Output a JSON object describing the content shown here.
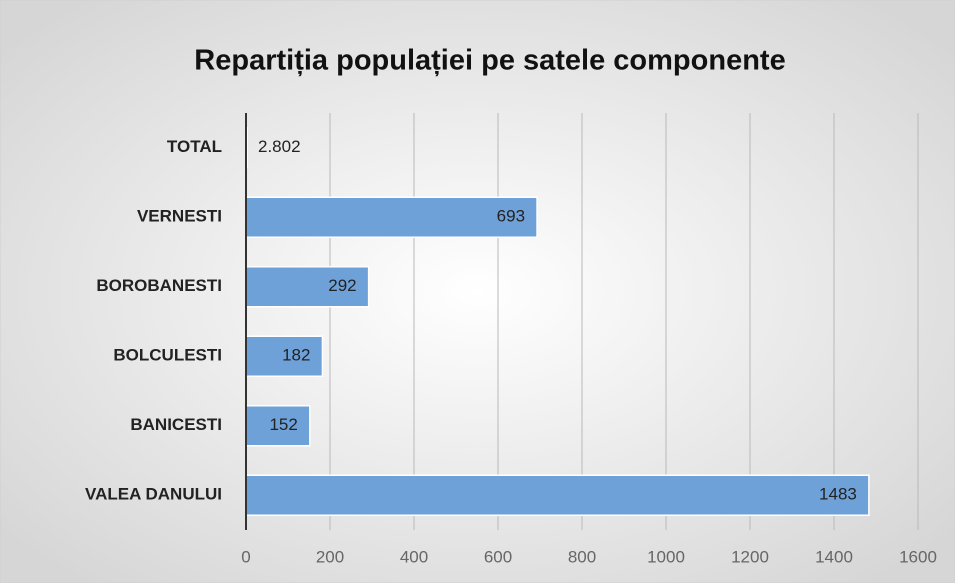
{
  "chart_data": {
    "type": "hbar",
    "title": "Repartiția populației pe satele componente",
    "categories": [
      "TOTAL",
      "VERNESTI",
      "BOROBANESTI",
      "BOLCULESTI",
      "BANICESTI",
      "VALEA DANULUI"
    ],
    "values": [
      2.802,
      693,
      292,
      182,
      152,
      1483
    ],
    "color": "#6fa1d9",
    "xlim": [
      0,
      1600
    ],
    "xticks": [
      0,
      200,
      400,
      600,
      800,
      1000,
      1200,
      1400,
      1600
    ],
    "grid": true
  }
}
